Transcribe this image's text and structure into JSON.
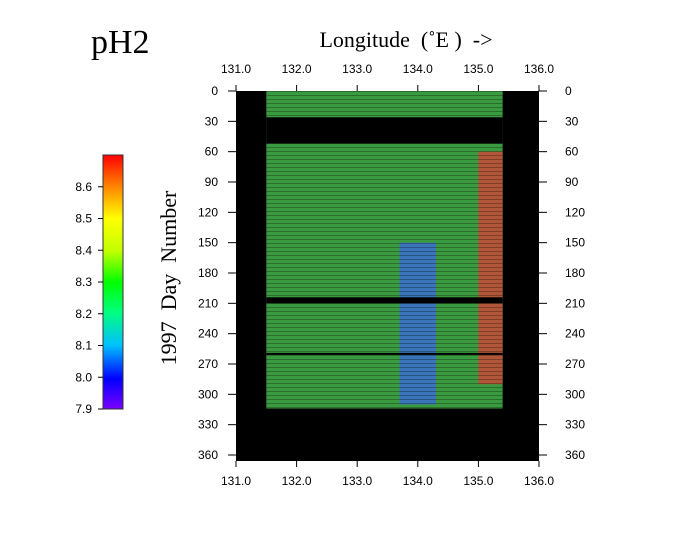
{
  "chart_data": {
    "type": "heatmap",
    "title": "pH2",
    "xlabel": "Longitude  (˚E )  ->",
    "ylabel": "1997  Day  Number",
    "x_ticks": [
      "131.0",
      "132.0",
      "133.0",
      "134.0",
      "135.0",
      "136.0"
    ],
    "y_ticks": [
      "0",
      "30",
      "60",
      "90",
      "120",
      "150",
      "180",
      "210",
      "240",
      "270",
      "300",
      "330",
      "360"
    ],
    "xlim": [
      131.0,
      136.0
    ],
    "ylim": [
      0,
      365
    ],
    "colorbar": {
      "min": 7.9,
      "max": 8.7,
      "ticks": [
        "8.6",
        "8.5",
        "8.4",
        "8.3",
        "8.2",
        "8.1",
        "8.0",
        "7.9"
      ],
      "colors": [
        "#7a00ff",
        "#0000ff",
        "#00c0ff",
        "#00ff80",
        "#00ff00",
        "#c0ff00",
        "#ffff00",
        "#ff8000",
        "#ff0000"
      ]
    },
    "data_extent": {
      "lon": [
        131.5,
        135.4
      ],
      "day": [
        0,
        314
      ]
    },
    "missing_days": [
      [
        26,
        52
      ],
      [
        204,
        210
      ],
      [
        259,
        261
      ]
    ],
    "regions": [
      {
        "name": "background",
        "lon": [
          131.5,
          135.4
        ],
        "day": [
          0,
          314
        ],
        "ph": 8.38,
        "color": "#3a9a40"
      },
      {
        "name": "low-ph-patch",
        "lon": [
          133.7,
          134.3
        ],
        "day": [
          150,
          310
        ],
        "ph": 8.12,
        "color": "#3b6fcf"
      },
      {
        "name": "high-ph-east-edge",
        "lon": [
          135.0,
          135.4
        ],
        "day": [
          60,
          290
        ],
        "ph": 8.62,
        "color": "#c84a3a"
      }
    ],
    "grid": false,
    "legend": "left colorbar"
  }
}
